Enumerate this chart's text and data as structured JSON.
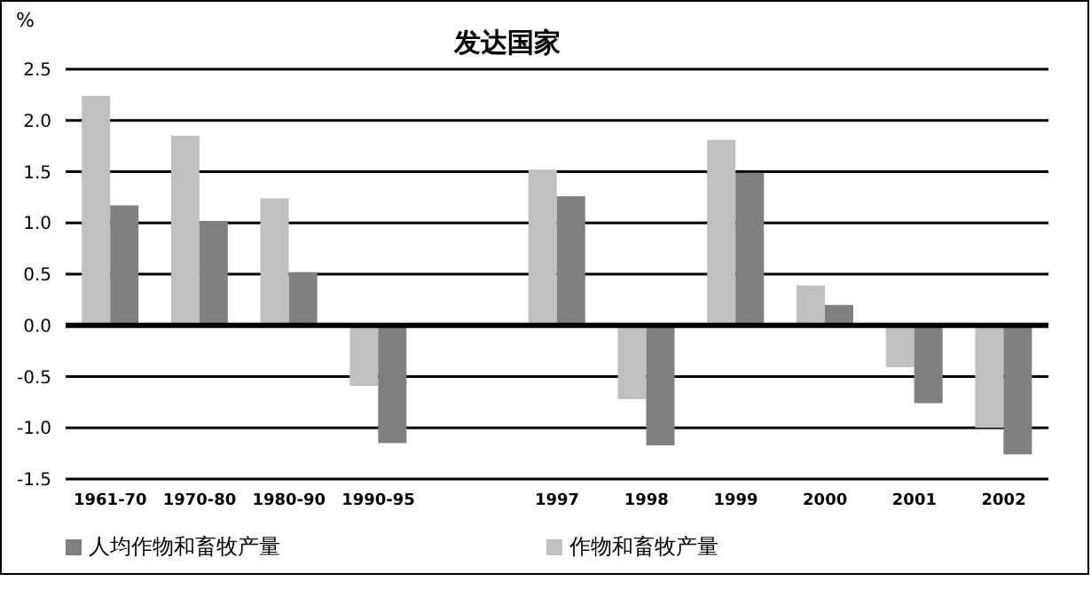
{
  "chart_data": {
    "type": "bar",
    "title": "发达国家",
    "ylabel": "%",
    "categories": [
      "1961-70",
      "1970-80",
      "1980-90",
      "1990-95",
      null,
      "1997",
      "1998",
      "1999",
      "2000",
      "2001",
      "2002"
    ],
    "series": [
      {
        "name": "作物和畜牧产量",
        "color": "#c0c0c0",
        "values": [
          2.24,
          1.85,
          1.24,
          -0.59,
          null,
          1.52,
          -0.72,
          1.81,
          0.39,
          -0.41,
          -1.0
        ]
      },
      {
        "name": "人均作物和畜牧产量",
        "color": "#808080",
        "values": [
          1.17,
          1.02,
          0.52,
          -1.15,
          null,
          1.26,
          -1.17,
          1.49,
          0.2,
          -0.76,
          -1.26
        ]
      }
    ],
    "ylim": [
      -1.5,
      2.5
    ],
    "yticks": [
      {
        "value": 2.5,
        "label": "2.5"
      },
      {
        "value": 2,
        "label": "2.0"
      },
      {
        "value": 1.5,
        "label": "1.5"
      },
      {
        "value": 1,
        "label": "1.0"
      },
      {
        "value": 0.5,
        "label": "0.5"
      },
      {
        "value": 0,
        "label": "0.0"
      },
      {
        "value": -0.5,
        "label": "-0.5"
      },
      {
        "value": -1,
        "label": "-1.0"
      },
      {
        "value": -1.5,
        "label": "-1.5"
      }
    ],
    "ref_lines": [
      {
        "axis": "y",
        "value": 0,
        "color": "#000000"
      }
    ],
    "grid": "y",
    "legend": "bottom"
  }
}
